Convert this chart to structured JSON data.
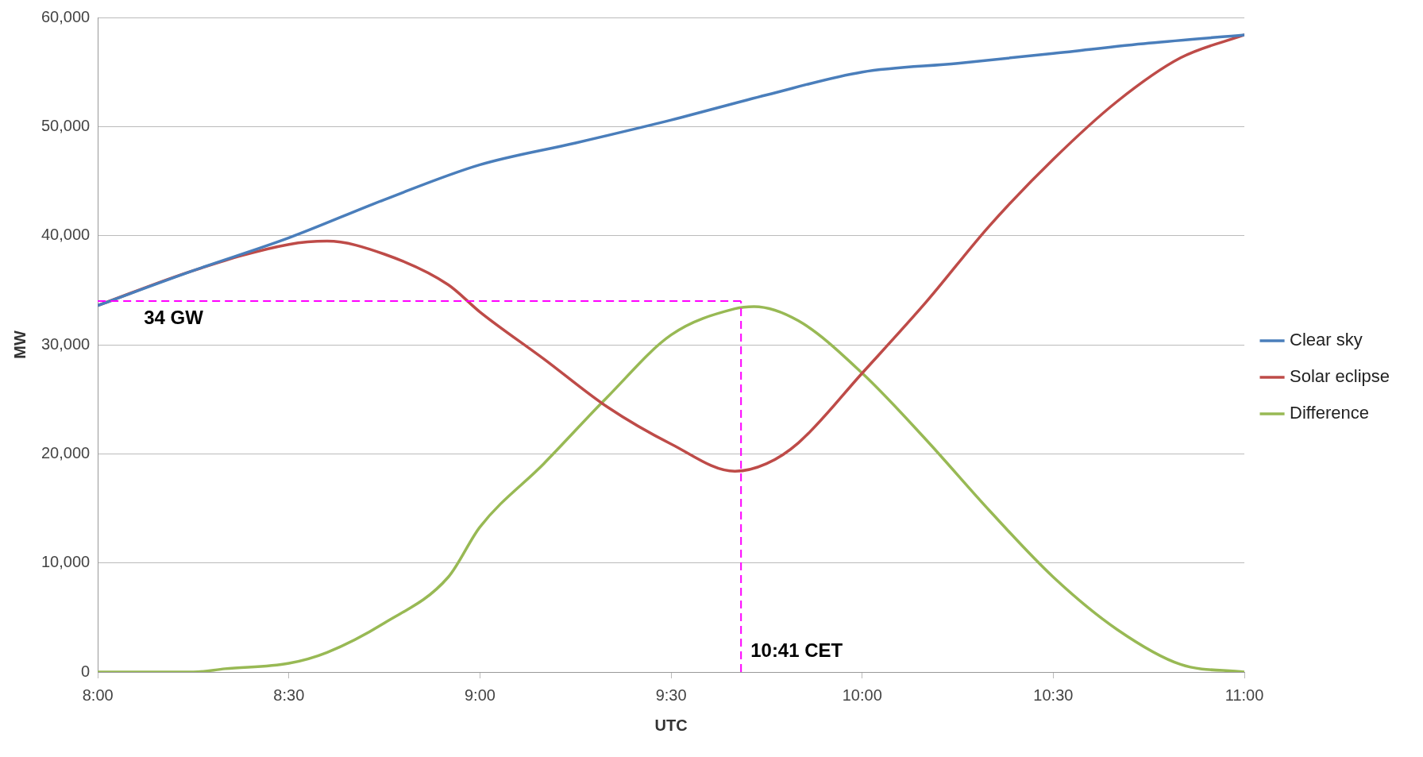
{
  "chart_data": {
    "type": "line",
    "xlabel": "UTC",
    "ylabel": "MW",
    "xlim": [
      8,
      11
    ],
    "xticks": [
      {
        "value": 8,
        "label": "8:00"
      },
      {
        "value": 8.5,
        "label": "8:30"
      },
      {
        "value": 9,
        "label": "9:00"
      },
      {
        "value": 9.5,
        "label": "9:30"
      },
      {
        "value": 10,
        "label": "10:00"
      },
      {
        "value": 10.5,
        "label": "10:30"
      },
      {
        "value": 11,
        "label": "11:00"
      }
    ],
    "ylim": [
      0,
      60000
    ],
    "yticks": [
      {
        "value": 0,
        "label": "0"
      },
      {
        "value": 10000,
        "label": "10,000"
      },
      {
        "value": 20000,
        "label": "20,000"
      },
      {
        "value": 30000,
        "label": "30,000"
      },
      {
        "value": 40000,
        "label": "40,000"
      },
      {
        "value": 50000,
        "label": "50,000"
      },
      {
        "value": 60000,
        "label": "60,000"
      }
    ],
    "grid": "y",
    "legend": "right",
    "marker": "none",
    "line_style": "solid",
    "series": [
      {
        "name": "Clear sky",
        "color": "#4a7ebb",
        "x": [
          8,
          8.25,
          8.5,
          8.75,
          9,
          9.25,
          9.5,
          9.75,
          10,
          10.25,
          10.5,
          10.75,
          11
        ],
        "values": [
          33600,
          36800,
          39800,
          43300,
          46500,
          48500,
          50600,
          52900,
          55000,
          55800,
          56700,
          57650,
          58400
        ]
      },
      {
        "name": "Solar eclipse",
        "color": "#be4b48",
        "x": [
          8,
          8.25,
          8.5,
          8.6,
          8.75,
          8.917,
          9,
          9.167,
          9.333,
          9.5,
          9.667,
          9.75,
          9.833,
          10,
          10.167,
          10.333,
          10.5,
          10.667,
          10.833,
          11
        ],
        "values": [
          33600,
          36800,
          39200,
          39500,
          38300,
          35500,
          33000,
          28700,
          24300,
          20900,
          18400,
          19100,
          21000,
          27400,
          33900,
          40900,
          47000,
          52300,
          56300,
          58400
        ]
      },
      {
        "name": "Difference",
        "color": "#98b954",
        "x": [
          8,
          8.25,
          8.333,
          8.5,
          8.6,
          8.75,
          8.917,
          9,
          9.167,
          9.333,
          9.5,
          9.667,
          9.717,
          9.833,
          10,
          10.167,
          10.333,
          10.5,
          10.667,
          10.833,
          11
        ],
        "values": [
          0,
          0,
          300,
          800,
          1800,
          4500,
          8700,
          13300,
          19100,
          25200,
          30900,
          33300,
          33500,
          32200,
          27400,
          21300,
          14800,
          8700,
          3900,
          700,
          0
        ]
      }
    ],
    "ref_lines": [
      {
        "axis": "y",
        "value": 34000,
        "label": "34 GW",
        "color": "#ff00ff",
        "line_style": "dashed"
      },
      {
        "axis": "x",
        "value": 9.683,
        "label": "10:41 CET",
        "color": "#ff00ff",
        "line_style": "dashed"
      }
    ]
  }
}
